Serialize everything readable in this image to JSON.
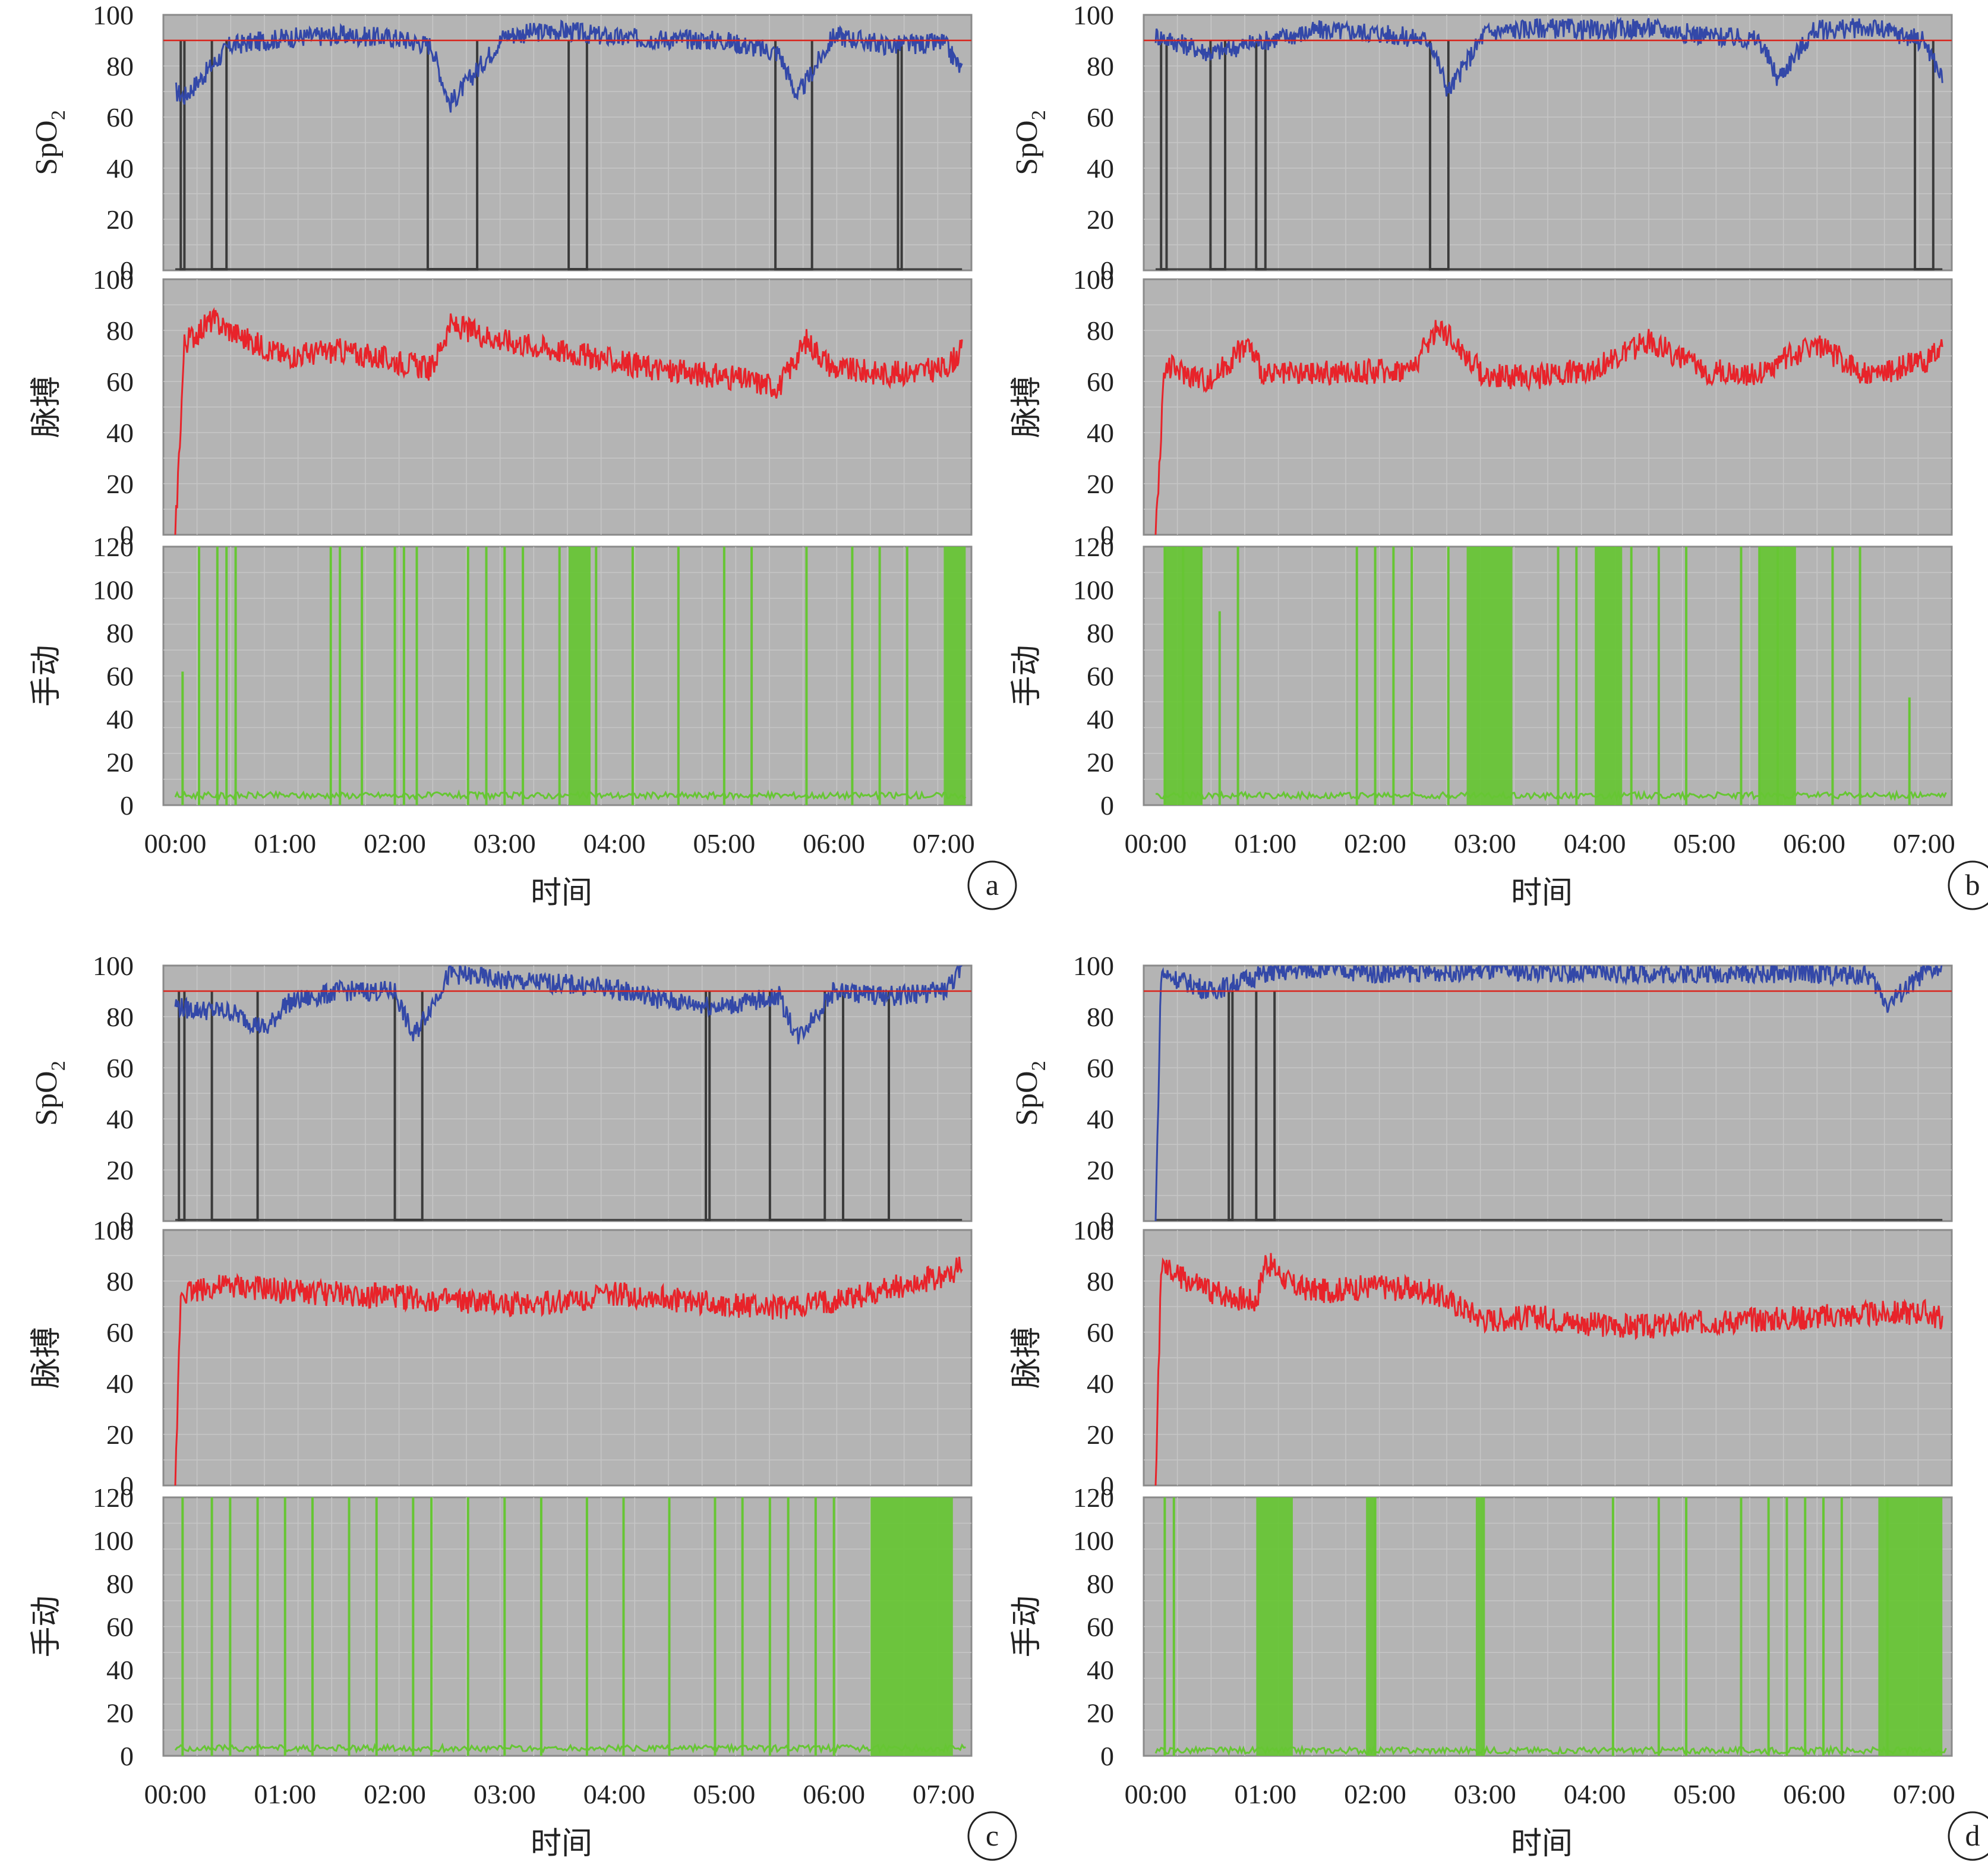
{
  "figure": {
    "x_axis_label": "时间",
    "x_ticks": [
      "00:00",
      "01:00",
      "02:00",
      "03:00",
      "04:00",
      "05:00",
      "06:00",
      "07:00"
    ],
    "reference_line": {
      "value": 90,
      "color": "#d9241c"
    },
    "colors": {
      "plot_background": "#b4b4b4",
      "grid": "#c6c6c6",
      "spo2": "#3348a8",
      "spo2_off": "#3a3a3a",
      "pulse": "#e8232a",
      "motion": "#66c633"
    }
  },
  "chart_data": [
    {
      "panel_label": "a",
      "type": "line",
      "subplots": [
        {
          "id": "spo2",
          "ylabel": "SpO2",
          "ylabel_main": "SpO",
          "ylabel_sub": "2",
          "ylim": [
            0,
            100
          ],
          "yticks": [
            "0",
            "20",
            "40",
            "60",
            "80",
            "100"
          ],
          "x": [
            "00:00",
            "00:05",
            "00:30",
            "01:00",
            "01:30",
            "02:00",
            "02:20",
            "02:30",
            "03:00",
            "03:30",
            "04:00",
            "05:00",
            "05:30",
            "05:40",
            "06:00",
            "06:30",
            "07:00",
            "07:10"
          ],
          "values": [
            70,
            68,
            88,
            91,
            92,
            91,
            88,
            65,
            92,
            94,
            91,
            90,
            85,
            68,
            92,
            88,
            89,
            78
          ],
          "offline_intervals": [
            [
              "00:03",
              "00:05"
            ],
            [
              "00:20",
              "00:28"
            ],
            [
              "02:18",
              "02:45"
            ],
            [
              "03:35",
              "03:45"
            ],
            [
              "05:28",
              "05:48"
            ],
            [
              "06:35",
              "06:37"
            ]
          ]
        },
        {
          "id": "pulse",
          "ylabel": "脉搏",
          "ylim": [
            0,
            100
          ],
          "yticks": [
            "0",
            "20",
            "40",
            "60",
            "80",
            "100"
          ],
          "x": [
            "00:00",
            "00:05",
            "00:20",
            "00:40",
            "01:00",
            "01:30",
            "02:00",
            "02:20",
            "02:30",
            "03:00",
            "03:30",
            "04:00",
            "04:30",
            "05:00",
            "05:30",
            "05:45",
            "06:00",
            "06:30",
            "07:00",
            "07:10"
          ],
          "values": [
            0,
            75,
            84,
            76,
            70,
            72,
            68,
            65,
            82,
            76,
            72,
            68,
            64,
            62,
            58,
            76,
            65,
            63,
            65,
            72
          ]
        },
        {
          "id": "motion",
          "ylabel": "手动",
          "ylim": [
            0,
            120
          ],
          "yticks": [
            "0",
            "20",
            "40",
            "60",
            "80",
            "100",
            "120"
          ],
          "baseline": 3,
          "spikes": [
            [
              "00:04",
              62
            ],
            [
              "00:13",
              120
            ],
            [
              "00:23",
              120
            ],
            [
              "00:28",
              120
            ],
            [
              "00:33",
              120
            ],
            [
              "01:25",
              120
            ],
            [
              "01:30",
              120
            ],
            [
              "01:42",
              120
            ],
            [
              "02:00",
              120
            ],
            [
              "02:05",
              120
            ],
            [
              "02:12",
              120
            ],
            [
              "02:40",
              120
            ],
            [
              "02:50",
              120
            ],
            [
              "03:00",
              120
            ],
            [
              "03:10",
              120
            ],
            [
              "03:30",
              120
            ],
            [
              "03:50",
              120
            ],
            [
              "04:10",
              120
            ],
            [
              "04:35",
              120
            ],
            [
              "05:00",
              120
            ],
            [
              "05:15",
              120
            ],
            [
              "05:45",
              120
            ],
            [
              "06:10",
              120
            ],
            [
              "06:25",
              120
            ],
            [
              "06:40",
              120
            ]
          ],
          "dense_intervals": [
            [
              "03:35",
              "03:47"
            ],
            [
              "07:00",
              "07:12"
            ]
          ]
        }
      ]
    },
    {
      "panel_label": "b",
      "type": "line",
      "subplots": [
        {
          "id": "spo2",
          "ylabel": "SpO2",
          "ylabel_main": "SpO",
          "ylabel_sub": "2",
          "ylim": [
            0,
            100
          ],
          "yticks": [
            "0",
            "20",
            "40",
            "60",
            "80",
            "100"
          ],
          "x": [
            "00:00",
            "00:30",
            "01:00",
            "01:30",
            "02:00",
            "02:30",
            "02:40",
            "03:00",
            "03:30",
            "04:00",
            "04:30",
            "05:00",
            "05:30",
            "05:40",
            "06:00",
            "06:30",
            "07:00",
            "07:10"
          ],
          "values": [
            92,
            85,
            90,
            94,
            93,
            90,
            70,
            93,
            95,
            94,
            95,
            92,
            90,
            75,
            94,
            95,
            90,
            75
          ],
          "offline_intervals": [
            [
              "00:03",
              "00:06"
            ],
            [
              "00:30",
              "00:38"
            ],
            [
              "00:55",
              "01:00"
            ],
            [
              "02:30",
              "02:40"
            ],
            [
              "06:55",
              "07:05"
            ]
          ]
        },
        {
          "id": "pulse",
          "ylabel": "脉搏",
          "ylim": [
            0,
            100
          ],
          "yticks": [
            "0",
            "20",
            "40",
            "60",
            "80",
            "100"
          ],
          "x": [
            "00:00",
            "00:05",
            "00:30",
            "00:50",
            "01:00",
            "01:30",
            "02:00",
            "02:20",
            "02:35",
            "03:00",
            "03:30",
            "04:00",
            "04:30",
            "05:00",
            "05:30",
            "06:00",
            "06:30",
            "07:00",
            "07:10"
          ],
          "values": [
            0,
            66,
            60,
            75,
            62,
            63,
            64,
            65,
            82,
            62,
            62,
            65,
            76,
            64,
            63,
            75,
            62,
            68,
            72
          ]
        },
        {
          "id": "motion",
          "ylabel": "手动",
          "ylim": [
            0,
            120
          ],
          "yticks": [
            "0",
            "20",
            "40",
            "60",
            "80",
            "100",
            "120"
          ],
          "baseline": 3,
          "spikes": [
            [
              "00:05",
              120
            ],
            [
              "00:15",
              120
            ],
            [
              "00:25",
              120
            ],
            [
              "00:35",
              90
            ],
            [
              "00:45",
              120
            ],
            [
              "01:50",
              120
            ],
            [
              "02:00",
              120
            ],
            [
              "02:10",
              120
            ],
            [
              "02:20",
              120
            ],
            [
              "02:40",
              120
            ],
            [
              "03:40",
              120
            ],
            [
              "03:50",
              120
            ],
            [
              "04:20",
              120
            ],
            [
              "04:35",
              120
            ],
            [
              "04:50",
              120
            ],
            [
              "05:20",
              120
            ],
            [
              "05:30",
              120
            ],
            [
              "05:40",
              120
            ],
            [
              "06:10",
              120
            ],
            [
              "06:25",
              120
            ],
            [
              "06:52",
              50
            ]
          ],
          "dense_intervals": [
            [
              "00:05",
              "00:25"
            ],
            [
              "02:50",
              "03:15"
            ],
            [
              "04:00",
              "04:15"
            ],
            [
              "05:30",
              "05:50"
            ]
          ]
        }
      ]
    },
    {
      "panel_label": "c",
      "type": "line",
      "subplots": [
        {
          "id": "spo2",
          "ylabel": "SpO2",
          "ylabel_main": "SpO",
          "ylabel_sub": "2",
          "ylim": [
            0,
            100
          ],
          "yticks": [
            "0",
            "20",
            "40",
            "60",
            "80",
            "100"
          ],
          "x": [
            "00:00",
            "00:05",
            "00:30",
            "00:50",
            "01:00",
            "01:30",
            "02:00",
            "02:10",
            "02:30",
            "03:00",
            "03:30",
            "04:00",
            "04:30",
            "05:00",
            "05:30",
            "05:40",
            "06:00",
            "06:30",
            "07:00",
            "07:10"
          ],
          "values": [
            85,
            83,
            82,
            75,
            85,
            90,
            90,
            72,
            97,
            94,
            93,
            91,
            86,
            84,
            88,
            72,
            90,
            88,
            90,
            98
          ],
          "offline_intervals": [
            [
              "00:02",
              "00:05"
            ],
            [
              "00:20",
              "00:45"
            ],
            [
              "02:00",
              "02:15"
            ],
            [
              "04:50",
              "04:52"
            ],
            [
              "05:25",
              "05:55"
            ],
            [
              "06:05",
              "06:30"
            ]
          ]
        },
        {
          "id": "pulse",
          "ylabel": "脉搏",
          "ylim": [
            0,
            100
          ],
          "yticks": [
            "0",
            "20",
            "40",
            "60",
            "80",
            "100"
          ],
          "x": [
            "00:00",
            "00:03",
            "00:30",
            "01:00",
            "01:30",
            "02:00",
            "02:30",
            "03:00",
            "03:30",
            "04:00",
            "04:30",
            "05:00",
            "05:30",
            "06:00",
            "06:30",
            "07:00",
            "07:10"
          ],
          "values": [
            0,
            76,
            78,
            76,
            75,
            74,
            72,
            71,
            72,
            75,
            73,
            71,
            69,
            72,
            77,
            82,
            86
          ]
        },
        {
          "id": "motion",
          "ylabel": "手动",
          "ylim": [
            0,
            120
          ],
          "yticks": [
            "0",
            "20",
            "40",
            "60",
            "80",
            "100",
            "120"
          ],
          "baseline": 2,
          "spikes": [
            [
              "00:04",
              120
            ],
            [
              "00:20",
              120
            ],
            [
              "00:30",
              120
            ],
            [
              "00:45",
              120
            ],
            [
              "01:00",
              120
            ],
            [
              "01:15",
              120
            ],
            [
              "01:35",
              120
            ],
            [
              "01:50",
              120
            ],
            [
              "02:10",
              120
            ],
            [
              "02:20",
              120
            ],
            [
              "02:40",
              120
            ],
            [
              "03:00",
              120
            ],
            [
              "03:20",
              120
            ],
            [
              "03:45",
              120
            ],
            [
              "04:05",
              120
            ],
            [
              "04:30",
              120
            ],
            [
              "04:55",
              120
            ],
            [
              "05:10",
              120
            ],
            [
              "05:25",
              120
            ],
            [
              "05:35",
              120
            ],
            [
              "05:50",
              120
            ],
            [
              "06:00",
              120
            ]
          ],
          "dense_intervals": [
            [
              "06:20",
              "07:05"
            ]
          ]
        }
      ]
    },
    {
      "panel_label": "d",
      "type": "line",
      "subplots": [
        {
          "id": "spo2",
          "ylabel": "SpO2",
          "ylabel_main": "SpO",
          "ylabel_sub": "2",
          "ylim": [
            0,
            100
          ],
          "yticks": [
            "0",
            "20",
            "40",
            "60",
            "80",
            "100"
          ],
          "x": [
            "00:00",
            "00:03",
            "00:30",
            "01:00",
            "01:30",
            "02:00",
            "03:00",
            "04:00",
            "05:00",
            "06:00",
            "06:30",
            "06:40",
            "07:00",
            "07:10"
          ],
          "values": [
            0,
            97,
            90,
            97,
            99,
            97,
            98,
            97,
            97,
            97,
            96,
            85,
            97,
            99
          ],
          "offline_intervals": [
            [
              "00:40",
              "00:42"
            ],
            [
              "00:55",
              "01:05"
            ]
          ]
        },
        {
          "id": "pulse",
          "ylabel": "脉搏",
          "ylim": [
            0,
            100
          ],
          "yticks": [
            "0",
            "20",
            "40",
            "60",
            "80",
            "100"
          ],
          "x": [
            "00:00",
            "00:03",
            "00:30",
            "00:55",
            "01:00",
            "01:15",
            "01:30",
            "02:00",
            "02:30",
            "03:00",
            "03:30",
            "04:00",
            "04:30",
            "05:00",
            "05:30",
            "06:00",
            "06:30",
            "07:00",
            "07:10"
          ],
          "values": [
            0,
            85,
            76,
            72,
            88,
            78,
            76,
            78,
            76,
            65,
            66,
            63,
            62,
            64,
            65,
            66,
            67,
            68,
            65
          ]
        },
        {
          "id": "motion",
          "ylabel": "手动",
          "ylim": [
            0,
            120
          ],
          "yticks": [
            "0",
            "20",
            "40",
            "60",
            "80",
            "100",
            "120"
          ],
          "baseline": 1,
          "spikes": [
            [
              "00:05",
              120
            ],
            [
              "00:10",
              120
            ],
            [
              "02:00",
              120
            ],
            [
              "04:10",
              120
            ],
            [
              "04:35",
              120
            ],
            [
              "04:50",
              120
            ],
            [
              "05:20",
              120
            ],
            [
              "05:35",
              120
            ],
            [
              "05:45",
              120
            ],
            [
              "05:55",
              120
            ],
            [
              "06:05",
              120
            ],
            [
              "06:15",
              120
            ],
            [
              "06:40",
              120
            ]
          ],
          "dense_intervals": [
            [
              "00:55",
              "01:15"
            ],
            [
              "01:55",
              "02:00"
            ],
            [
              "02:55",
              "03:00"
            ],
            [
              "06:35",
              "07:10"
            ]
          ]
        }
      ]
    }
  ]
}
